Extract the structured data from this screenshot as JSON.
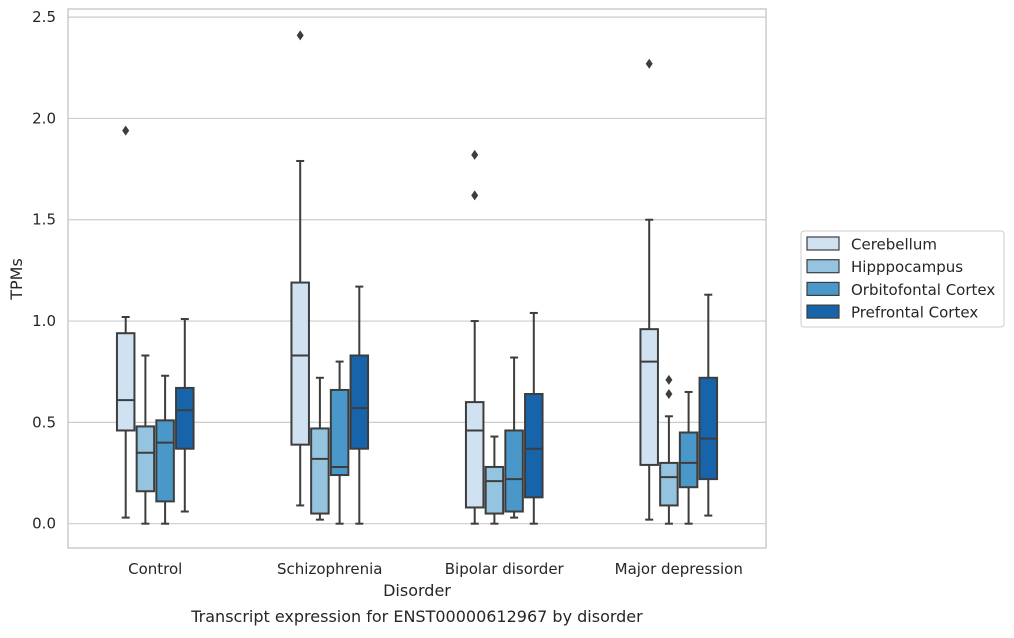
{
  "chart_data": {
    "type": "box",
    "title": "",
    "caption": "Transcript expression for ENST00000612967 by disorder",
    "xlabel": "Disorder",
    "ylabel": "TPMs",
    "ylim": [
      -0.12,
      2.54
    ],
    "yticks": [
      "0.0",
      "0.5",
      "1.0",
      "1.5",
      "2.0",
      "2.5"
    ],
    "grid": true,
    "legend_position": "right",
    "categories": [
      "Control",
      "Schizophrenia",
      "Bipolar disorder",
      "Major depression"
    ],
    "series": [
      {
        "name": "Cerebellum",
        "color": "#d0e1f2",
        "boxes": [
          {
            "whislo": 0.03,
            "q1": 0.46,
            "med": 0.61,
            "q3": 0.94,
            "whishi": 1.02,
            "fliers": [
              1.94
            ]
          },
          {
            "whislo": 0.09,
            "q1": 0.39,
            "med": 0.83,
            "q3": 1.19,
            "whishi": 1.79,
            "fliers": [
              2.41
            ]
          },
          {
            "whislo": 0.0,
            "q1": 0.08,
            "med": 0.46,
            "q3": 0.6,
            "whishi": 1.0,
            "fliers": [
              1.62,
              1.82
            ]
          },
          {
            "whislo": 0.02,
            "q1": 0.29,
            "med": 0.8,
            "q3": 0.96,
            "whishi": 1.5,
            "fliers": [
              2.27
            ]
          }
        ]
      },
      {
        "name": "Hipppocampus",
        "color": "#94c4df",
        "boxes": [
          {
            "whislo": 0.0,
            "q1": 0.16,
            "med": 0.35,
            "q3": 0.48,
            "whishi": 0.83,
            "fliers": []
          },
          {
            "whislo": 0.02,
            "q1": 0.05,
            "med": 0.32,
            "q3": 0.47,
            "whishi": 0.72,
            "fliers": []
          },
          {
            "whislo": 0.0,
            "q1": 0.05,
            "med": 0.21,
            "q3": 0.28,
            "whishi": 0.43,
            "fliers": []
          },
          {
            "whislo": 0.0,
            "q1": 0.09,
            "med": 0.23,
            "q3": 0.3,
            "whishi": 0.53,
            "fliers": [
              0.64,
              0.71
            ]
          }
        ]
      },
      {
        "name": "Orbitofontal Cortex",
        "color": "#4a98c9",
        "boxes": [
          {
            "whislo": 0.0,
            "q1": 0.11,
            "med": 0.4,
            "q3": 0.51,
            "whishi": 0.73,
            "fliers": []
          },
          {
            "whislo": 0.0,
            "q1": 0.24,
            "med": 0.28,
            "q3": 0.66,
            "whishi": 0.8,
            "fliers": []
          },
          {
            "whislo": 0.03,
            "q1": 0.06,
            "med": 0.22,
            "q3": 0.46,
            "whishi": 0.82,
            "fliers": []
          },
          {
            "whislo": 0.0,
            "q1": 0.18,
            "med": 0.3,
            "q3": 0.45,
            "whishi": 0.65,
            "fliers": []
          }
        ]
      },
      {
        "name": "Prefrontal Cortex",
        "color": "#1764ab",
        "boxes": [
          {
            "whislo": 0.06,
            "q1": 0.37,
            "med": 0.56,
            "q3": 0.67,
            "whishi": 1.01,
            "fliers": []
          },
          {
            "whislo": 0.0,
            "q1": 0.37,
            "med": 0.57,
            "q3": 0.83,
            "whishi": 1.17,
            "fliers": []
          },
          {
            "whislo": 0.0,
            "q1": 0.13,
            "med": 0.37,
            "q3": 0.64,
            "whishi": 1.04,
            "fliers": []
          },
          {
            "whislo": 0.04,
            "q1": 0.22,
            "med": 0.42,
            "q3": 0.72,
            "whishi": 1.13,
            "fliers": []
          }
        ]
      }
    ]
  }
}
